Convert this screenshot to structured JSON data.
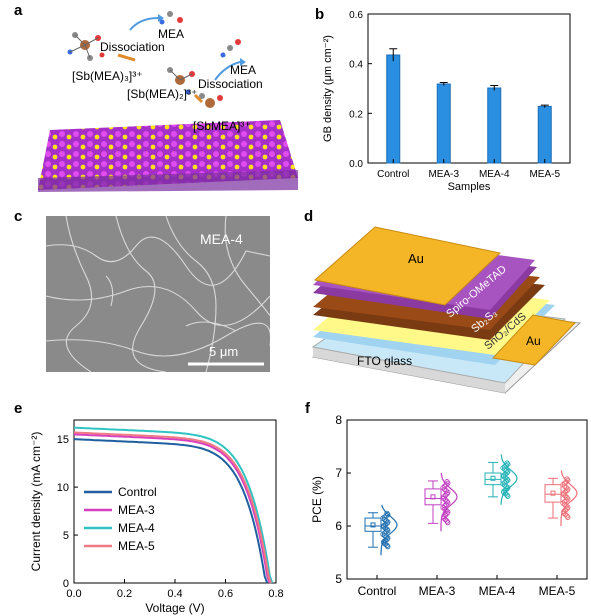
{
  "panels": {
    "a": {
      "letter": "a",
      "labels": {
        "mea_top": "MEA",
        "dissociation_1": "Dissociation",
        "sb_mea3": "[Sb(MEA)₃]³⁺",
        "mea_mid": "MEA",
        "dissociation_2": "Dissociation",
        "sb_mea2": "[Sb(MEA)₂]³⁺",
        "sbmea": "[SbMEA]³⁺"
      }
    },
    "b": {
      "letter": "b",
      "chart_data": {
        "type": "bar",
        "categories": [
          "Control",
          "MEA-3",
          "MEA-4",
          "MEA-5"
        ],
        "values": [
          0.435,
          0.318,
          0.302,
          0.228
        ],
        "errors": [
          0.025,
          0.006,
          0.01,
          0.005
        ],
        "xlabel": "Samples",
        "ylabel": "GB density (μm cm⁻²)",
        "ylim": [
          0,
          0.6
        ],
        "yticks": [
          "0.0",
          "0.2",
          "0.4",
          "0.6"
        ],
        "bar_color": "#2a8fe0"
      }
    },
    "c": {
      "letter": "c",
      "sample_label": "MEA-4",
      "scale_label": "5 μm"
    },
    "d": {
      "letter": "d",
      "layers": {
        "au_top": "Au",
        "spiro": "Spiro-OMeTAD",
        "sb2s3": "Sb₂S₃",
        "sno2_cds": "SnO₂/CdS",
        "au_side": "Au",
        "fto": "FTO glass"
      }
    },
    "e": {
      "letter": "e",
      "chart_data": {
        "type": "line",
        "xlabel": "Voltage (V)",
        "ylabel": "Current density (mA cm⁻²)",
        "xlim": [
          0,
          0.8
        ],
        "ylim": [
          0,
          17
        ],
        "xticks": [
          "0.0",
          "0.2",
          "0.4",
          "0.6",
          "0.8"
        ],
        "yticks": [
          "0",
          "5",
          "10",
          "15"
        ],
        "series": [
          {
            "name": "Control",
            "color": "#1f5fa0",
            "jsc": 15.0,
            "voc": 0.765
          },
          {
            "name": "MEA-3",
            "color": "#d63fbf",
            "jsc": 15.5,
            "voc": 0.775
          },
          {
            "name": "MEA-4",
            "color": "#2fc3c3",
            "jsc": 16.2,
            "voc": 0.785
          },
          {
            "name": "MEA-5",
            "color": "#f07a84",
            "jsc": 15.7,
            "voc": 0.78
          }
        ]
      }
    },
    "f": {
      "letter": "f",
      "chart_data": {
        "type": "box",
        "categories": [
          "Control",
          "MEA-3",
          "MEA-4",
          "MEA-5"
        ],
        "ylabel": "PCE (%)",
        "ylim": [
          5,
          8
        ],
        "yticks": [
          "5",
          "6",
          "7",
          "8"
        ],
        "series": [
          {
            "name": "Control",
            "color": "#1f6fb0",
            "q1": 5.9,
            "median": 6.0,
            "q3": 6.15,
            "mean": 6.02,
            "min": 5.6,
            "max": 6.25
          },
          {
            "name": "MEA-3",
            "color": "#c23fc2",
            "q1": 6.4,
            "median": 6.52,
            "q3": 6.7,
            "mean": 6.55,
            "min": 6.05,
            "max": 6.85
          },
          {
            "name": "MEA-4",
            "color": "#24b3b6",
            "q1": 6.78,
            "median": 6.88,
            "q3": 7.0,
            "mean": 6.9,
            "min": 6.55,
            "max": 7.2
          },
          {
            "name": "MEA-5",
            "color": "#ee6f78",
            "q1": 6.45,
            "median": 6.6,
            "q3": 6.78,
            "mean": 6.62,
            "min": 6.15,
            "max": 6.9
          }
        ]
      }
    }
  }
}
